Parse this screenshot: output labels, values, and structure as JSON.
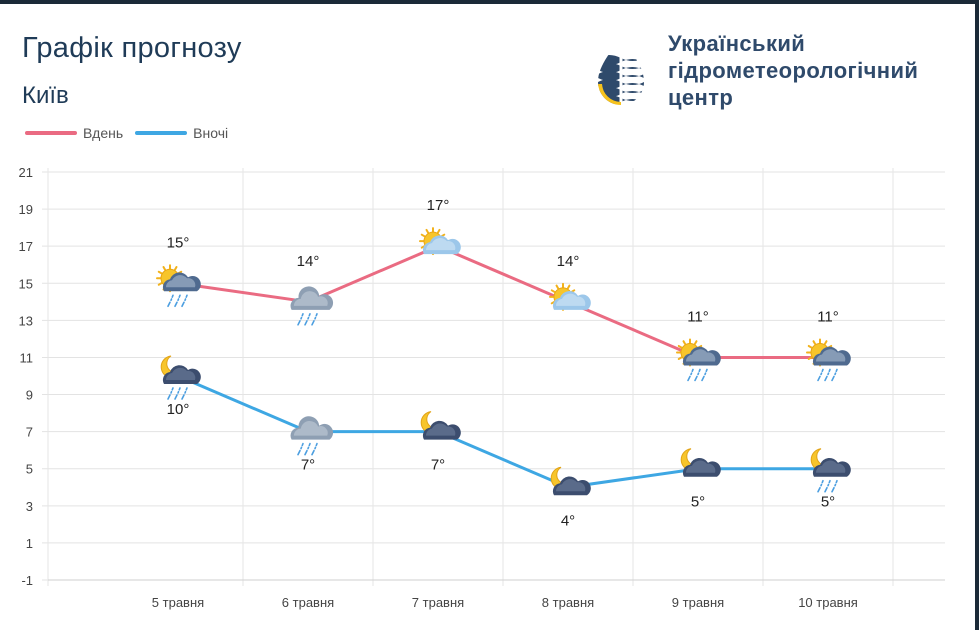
{
  "header": {
    "title": "Графік прогнозу",
    "city": "Київ"
  },
  "organization": {
    "line1": "Український",
    "line2": "гідрометеорологічний",
    "line3": "центр"
  },
  "chart_data": {
    "type": "line",
    "categories": [
      "5 травня",
      "6 травня",
      "7 травня",
      "8 травня",
      "9 травня",
      "10 травня"
    ],
    "series": [
      {
        "name": "Вдень",
        "color": "#ea6b82",
        "values": [
          15,
          14,
          17,
          14,
          11,
          11
        ],
        "labels": [
          "15°",
          "14°",
          "17°",
          "14°",
          "11°",
          "11°"
        ],
        "icons": [
          "sun-cloud-rain",
          "cloud-rain",
          "sun-cloud",
          "sun-cloud",
          "sun-cloud-rain",
          "sun-cloud-rain"
        ]
      },
      {
        "name": "Вночі",
        "color": "#3ea7e3",
        "values": [
          10,
          7,
          7,
          4,
          5,
          5
        ],
        "labels": [
          "10°",
          "7°",
          "7°",
          "4°",
          "5°",
          "5°"
        ],
        "icons": [
          "moon-cloud-rain",
          "cloud-rain",
          "moon-cloud",
          "moon-cloud",
          "moon-cloud",
          "moon-cloud-rain"
        ]
      }
    ],
    "yticks": [
      "21",
      "19",
      "17",
      "15",
      "13",
      "11",
      "9",
      "7",
      "5",
      "3",
      "1",
      "-1"
    ],
    "ylim": [
      -1,
      21
    ],
    "grid": true,
    "legend_position": "top-left"
  },
  "colors": {
    "title": "#1f3b57",
    "logo_blue": "#2f4a6b",
    "logo_yellow": "#f6c21c"
  }
}
